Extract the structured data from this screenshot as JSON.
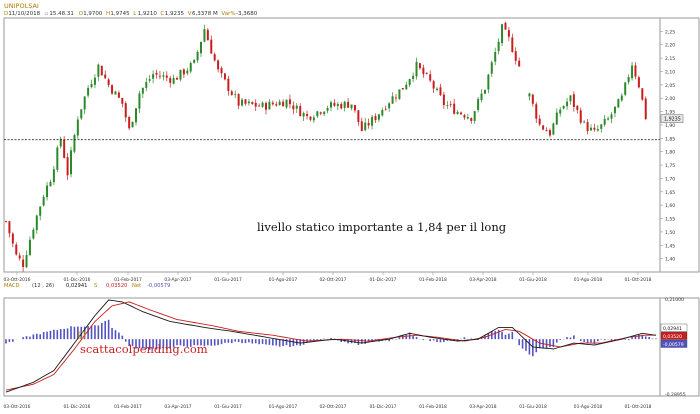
{
  "chart_data": [
    {
      "type": "candlestick",
      "title": "UNIPOLSAI",
      "header": {
        "date_label": "D",
        "date": "11/10/2018",
        "time": "15.48.31",
        "open_label": "O",
        "open": "1,9700",
        "high_label": "H",
        "high": "1,9745",
        "low_label": "L",
        "low": "1,9210",
        "close_label": "C",
        "close": "1,9235",
        "volume_label": "V",
        "volume": "6,3378 M",
        "change_label": "Var%",
        "change": "-3,3680"
      },
      "ylim": [
        1.35,
        2.3
      ],
      "ytick_labels": [
        "2,25",
        "2,20",
        "2,15",
        "2,10",
        "2,05",
        "2,00",
        "1,95",
        "1,90",
        "1,85",
        "1,80",
        "1,75",
        "1,70",
        "1,65",
        "1,60",
        "1,55",
        "1,50",
        "1,45",
        "1,40"
      ],
      "xtick_labels": [
        "03-Ott-2016",
        "01-Dic-2016",
        "01-Feb-2017",
        "03-Apr-2017",
        "01-Giu-2017",
        "01-Ago-2017",
        "02-Ott-2017",
        "01-Dic-2017",
        "01-Feb-2018",
        "03-Apr-2018",
        "01-Giu-2018",
        "01-Ago-2018",
        "01-Ott-2018"
      ],
      "last_price_label": "1,9235",
      "last_price": 1.9235,
      "support_level": 1.845,
      "annotation": "livello statico importante a 1,84 per il long",
      "up_color": "#2a8a2a",
      "down_color": "#c81e1e",
      "path_points": [
        {
          "x": 0,
          "y": 1.54
        },
        {
          "x": 3,
          "y": 1.41
        },
        {
          "x": 5,
          "y": 1.38
        },
        {
          "x": 8,
          "y": 1.52
        },
        {
          "x": 11,
          "y": 1.64
        },
        {
          "x": 13,
          "y": 1.7
        },
        {
          "x": 16,
          "y": 1.85
        },
        {
          "x": 18,
          "y": 1.72
        },
        {
          "x": 21,
          "y": 1.93
        },
        {
          "x": 24,
          "y": 2.04
        },
        {
          "x": 27,
          "y": 2.12
        },
        {
          "x": 30,
          "y": 2.05
        },
        {
          "x": 34,
          "y": 1.98
        },
        {
          "x": 36,
          "y": 1.88
        },
        {
          "x": 39,
          "y": 2.02
        },
        {
          "x": 43,
          "y": 2.09
        },
        {
          "x": 49,
          "y": 2.07
        },
        {
          "x": 55,
          "y": 2.13
        },
        {
          "x": 58,
          "y": 2.26
        },
        {
          "x": 62,
          "y": 2.1
        },
        {
          "x": 68,
          "y": 1.98
        },
        {
          "x": 75,
          "y": 1.97
        },
        {
          "x": 82,
          "y": 1.99
        },
        {
          "x": 88,
          "y": 1.93
        },
        {
          "x": 94,
          "y": 1.97
        },
        {
          "x": 101,
          "y": 1.98
        },
        {
          "x": 104,
          "y": 1.88
        },
        {
          "x": 108,
          "y": 1.93
        },
        {
          "x": 112,
          "y": 1.99
        },
        {
          "x": 116,
          "y": 2.04
        },
        {
          "x": 120,
          "y": 2.12
        },
        {
          "x": 124,
          "y": 2.06
        },
        {
          "x": 128,
          "y": 1.98
        },
        {
          "x": 132,
          "y": 1.95
        },
        {
          "x": 136,
          "y": 1.93
        },
        {
          "x": 140,
          "y": 2.04
        },
        {
          "x": 143,
          "y": 2.17
        },
        {
          "x": 145,
          "y": 2.26
        },
        {
          "x": 147,
          "y": 2.22
        },
        {
          "x": 150,
          "y": 2.12
        }
      ],
      "path_points_2": [
        {
          "x": 153,
          "y": 2.01
        },
        {
          "x": 156,
          "y": 1.9
        },
        {
          "x": 159,
          "y": 1.87
        },
        {
          "x": 162,
          "y": 1.96
        },
        {
          "x": 165,
          "y": 2.0
        },
        {
          "x": 169,
          "y": 1.9
        },
        {
          "x": 172,
          "y": 1.87
        },
        {
          "x": 176,
          "y": 1.92
        },
        {
          "x": 180,
          "y": 2.0
        },
        {
          "x": 183,
          "y": 2.13
        },
        {
          "x": 185,
          "y": 2.05
        },
        {
          "x": 187,
          "y": 1.93
        }
      ]
    },
    {
      "type": "line",
      "title": "MACD",
      "params": "(12 , 26)",
      "series": [
        {
          "name": "",
          "value_label": "0,02941",
          "color": "#1a1a1a"
        },
        {
          "name": "S",
          "value_label": "0,03520",
          "color": "#c81e1e"
        },
        {
          "name": "Net",
          "value_label": "-0,00579",
          "color": "#5252c0"
        }
      ],
      "ytick_labels": [
        "0,21000",
        "-0,28955"
      ],
      "xtick_labels": [
        "03-Ott-2016",
        "01-Dic-2016",
        "01-Feb-2017",
        "03-Apr-2017",
        "01-Giu-2017",
        "01-Ago-2017",
        "02-Ott-2017",
        "01-Dic-2017",
        "01-Feb-2018",
        "03-Apr-2018",
        "01-Giu-2018",
        "01-Ago-2018",
        "01-Ott-2018"
      ],
      "ylim": [
        -0.29,
        0.21
      ],
      "macd_points": [
        {
          "x": 0,
          "y": -0.27
        },
        {
          "x": 8,
          "y": -0.22
        },
        {
          "x": 14,
          "y": -0.16
        },
        {
          "x": 20,
          "y": -0.02
        },
        {
          "x": 26,
          "y": 0.12
        },
        {
          "x": 30,
          "y": 0.2
        },
        {
          "x": 34,
          "y": 0.19
        },
        {
          "x": 40,
          "y": 0.14
        },
        {
          "x": 48,
          "y": 0.09
        },
        {
          "x": 58,
          "y": 0.06
        },
        {
          "x": 66,
          "y": 0.04
        },
        {
          "x": 76,
          "y": 0.01
        },
        {
          "x": 86,
          "y": -0.02
        },
        {
          "x": 96,
          "y": 0.0
        },
        {
          "x": 104,
          "y": -0.02
        },
        {
          "x": 112,
          "y": 0.0
        },
        {
          "x": 118,
          "y": 0.03
        },
        {
          "x": 124,
          "y": 0.01
        },
        {
          "x": 132,
          "y": -0.01
        },
        {
          "x": 138,
          "y": 0.0
        },
        {
          "x": 144,
          "y": 0.06
        },
        {
          "x": 148,
          "y": 0.06
        },
        {
          "x": 154,
          "y": -0.04
        },
        {
          "x": 160,
          "y": -0.05
        },
        {
          "x": 166,
          "y": -0.02
        },
        {
          "x": 172,
          "y": -0.03
        },
        {
          "x": 180,
          "y": 0.0
        },
        {
          "x": 186,
          "y": 0.03
        },
        {
          "x": 190,
          "y": 0.02
        }
      ],
      "signal_points": [
        {
          "x": 0,
          "y": -0.26
        },
        {
          "x": 8,
          "y": -0.23
        },
        {
          "x": 14,
          "y": -0.18
        },
        {
          "x": 20,
          "y": -0.05
        },
        {
          "x": 26,
          "y": 0.09
        },
        {
          "x": 31,
          "y": 0.17
        },
        {
          "x": 36,
          "y": 0.19
        },
        {
          "x": 42,
          "y": 0.15
        },
        {
          "x": 50,
          "y": 0.1
        },
        {
          "x": 60,
          "y": 0.07
        },
        {
          "x": 68,
          "y": 0.04
        },
        {
          "x": 78,
          "y": 0.02
        },
        {
          "x": 88,
          "y": -0.01
        },
        {
          "x": 98,
          "y": 0.0
        },
        {
          "x": 106,
          "y": -0.01
        },
        {
          "x": 114,
          "y": 0.01
        },
        {
          "x": 120,
          "y": 0.02
        },
        {
          "x": 126,
          "y": 0.01
        },
        {
          "x": 134,
          "y": -0.01
        },
        {
          "x": 140,
          "y": 0.01
        },
        {
          "x": 146,
          "y": 0.05
        },
        {
          "x": 150,
          "y": 0.04
        },
        {
          "x": 156,
          "y": -0.02
        },
        {
          "x": 162,
          "y": -0.04
        },
        {
          "x": 168,
          "y": -0.02
        },
        {
          "x": 174,
          "y": -0.02
        },
        {
          "x": 182,
          "y": 0.01
        },
        {
          "x": 187,
          "y": 0.02
        },
        {
          "x": 190,
          "y": 0.02
        }
      ],
      "watermark": "scattacolpending.com",
      "watermark_color": "#c81e1e"
    }
  ]
}
